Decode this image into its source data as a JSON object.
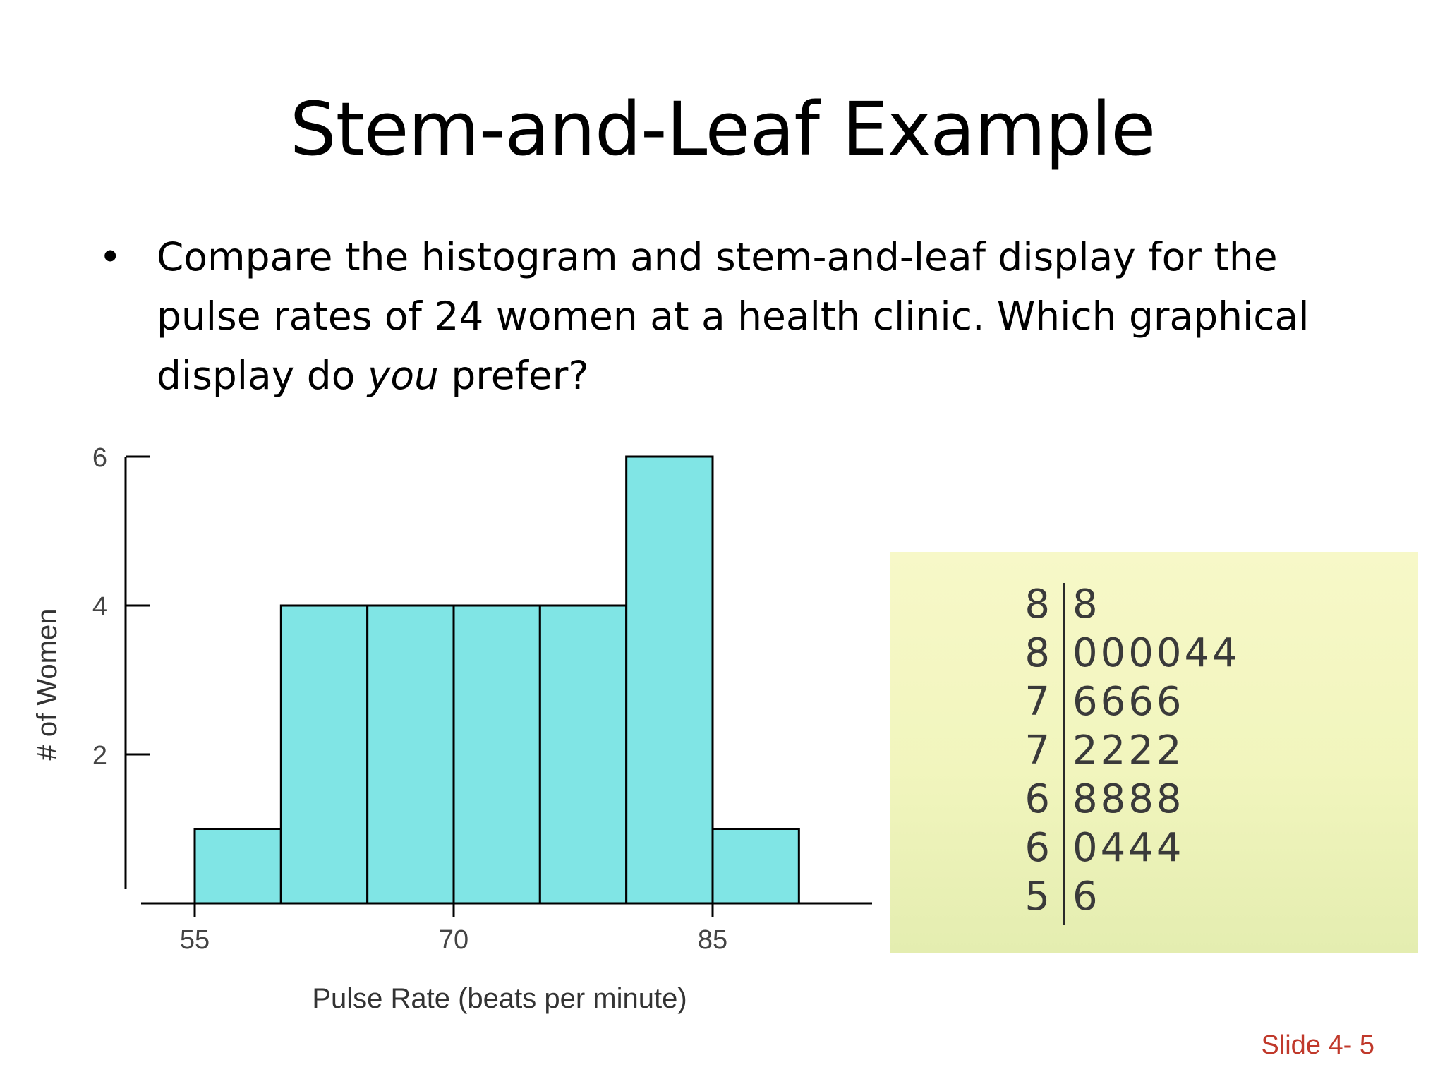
{
  "slide": {
    "title": "Stem-and-Leaf Example",
    "bullet_symbol": "•",
    "bullet_before": "Compare the histogram and stem-and-leaf display for the pulse rates of 24 women at a health clinic. Which graphical display do ",
    "bullet_emphasis": "you",
    "bullet_after": " prefer?",
    "slide_number": "Slide 4- 5"
  },
  "colors": {
    "bar_fill": "#80e5e5",
    "bar_stroke": "#000000",
    "slide_number": "#c0392b"
  },
  "chart_data": {
    "type": "bar",
    "xlabel": "Pulse Rate (beats per minute)",
    "ylabel": "# of Women",
    "bins": [
      {
        "from": 55,
        "to": 60,
        "count": 1
      },
      {
        "from": 60,
        "to": 65,
        "count": 4
      },
      {
        "from": 65,
        "to": 70,
        "count": 4
      },
      {
        "from": 70,
        "to": 75,
        "count": 4
      },
      {
        "from": 75,
        "to": 80,
        "count": 4
      },
      {
        "from": 80,
        "to": 85,
        "count": 6
      },
      {
        "from": 85,
        "to": 90,
        "count": 1
      }
    ],
    "x_ticks": [
      55,
      70,
      85
    ],
    "y_ticks": [
      2,
      4,
      6
    ],
    "xlim": [
      53.5,
      95.5
    ],
    "ylim": [
      0,
      6
    ],
    "grid": false
  },
  "stem_leaf": {
    "rows": [
      {
        "stem": "8",
        "leaves": "8"
      },
      {
        "stem": "8",
        "leaves": "000044"
      },
      {
        "stem": "7",
        "leaves": "6666"
      },
      {
        "stem": "7",
        "leaves": "2222"
      },
      {
        "stem": "6",
        "leaves": "8888"
      },
      {
        "stem": "6",
        "leaves": "0444"
      },
      {
        "stem": "5",
        "leaves": "6"
      }
    ]
  }
}
